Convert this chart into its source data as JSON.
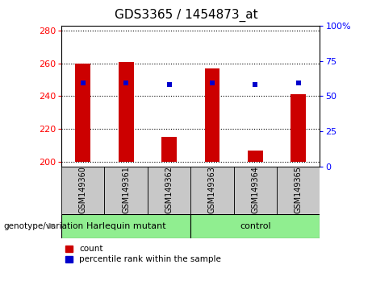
{
  "title": "GDS3365 / 1454873_at",
  "samples": [
    "GSM149360",
    "GSM149361",
    "GSM149362",
    "GSM149363",
    "GSM149364",
    "GSM149365"
  ],
  "bar_values": [
    260,
    261,
    215,
    257,
    207,
    241
  ],
  "bar_base": 200,
  "percentile_values": [
    248,
    248,
    247,
    248,
    247,
    248
  ],
  "ylim_left": [
    197,
    283
  ],
  "yticks_left": [
    200,
    220,
    240,
    260,
    280
  ],
  "ylim_right": [
    0,
    100
  ],
  "yticks_right": [
    0,
    25,
    50,
    75,
    100
  ],
  "bar_color": "#CC0000",
  "percentile_color": "#0000CC",
  "bg_xticklabel": "#C8C8C8",
  "bg_group": "#90EE90",
  "title_fontsize": 11,
  "tick_fontsize": 8,
  "label_fontsize": 7.5
}
